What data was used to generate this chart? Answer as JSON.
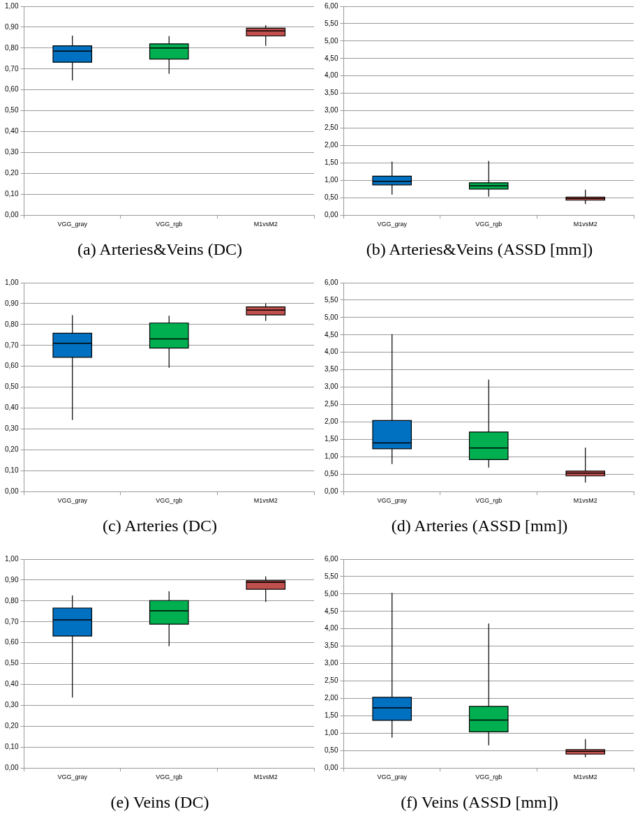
{
  "chart_data": [
    {
      "type": "box",
      "title": "(a) Arteries&Veins (DC)",
      "categories": [
        "VGG_gray",
        "VGG_rgb",
        "M1vsM2"
      ],
      "colors": [
        "#0070c0",
        "#00b050",
        "#c0504d"
      ],
      "grid": "y",
      "ylim": [
        0,
        1
      ],
      "yticks": [
        {
          "value": 0,
          "label": "0,00"
        },
        {
          "value": 0.1,
          "label": "0,10"
        },
        {
          "value": 0.2,
          "label": "0,20"
        },
        {
          "value": 0.3,
          "label": "0,30"
        },
        {
          "value": 0.4,
          "label": "0,40"
        },
        {
          "value": 0.5,
          "label": "0,50"
        },
        {
          "value": 0.6,
          "label": "0,60"
        },
        {
          "value": 0.7,
          "label": "0,70"
        },
        {
          "value": 0.8,
          "label": "0,80"
        },
        {
          "value": 0.9,
          "label": "0,90"
        },
        {
          "value": 1,
          "label": "1,00"
        }
      ],
      "boxes": [
        {
          "low": 0.645,
          "q1": 0.732,
          "median": 0.785,
          "q3": 0.811,
          "high": 0.86
        },
        {
          "low": 0.677,
          "q1": 0.747,
          "median": 0.8,
          "q3": 0.82,
          "high": 0.857
        },
        {
          "low": 0.811,
          "q1": 0.858,
          "median": 0.882,
          "q3": 0.895,
          "high": 0.91
        }
      ]
    },
    {
      "type": "box",
      "title": "(b) Arteries&Veins (ASSD [mm])",
      "categories": [
        "VGG_gray",
        "VGG_rgb",
        "M1vsM2"
      ],
      "colors": [
        "#0070c0",
        "#00b050",
        "#c0504d"
      ],
      "grid": "y",
      "ylim": [
        0,
        6
      ],
      "yticks": [
        {
          "value": 0,
          "label": "0,00"
        },
        {
          "value": 0.5,
          "label": "0,50"
        },
        {
          "value": 1,
          "label": "1,00"
        },
        {
          "value": 1.5,
          "label": "1,50"
        },
        {
          "value": 2,
          "label": "2,00"
        },
        {
          "value": 2.5,
          "label": "2,50"
        },
        {
          "value": 3,
          "label": "3,00"
        },
        {
          "value": 3.5,
          "label": "3,50"
        },
        {
          "value": 4,
          "label": "4,00"
        },
        {
          "value": 4.5,
          "label": "4,50"
        },
        {
          "value": 5,
          "label": "5,00"
        },
        {
          "value": 5.5,
          "label": "5,50"
        },
        {
          "value": 6,
          "label": "6,00"
        }
      ],
      "boxes": [
        {
          "low": 0.59,
          "q1": 0.87,
          "median": 0.97,
          "q3": 1.12,
          "high": 1.54
        },
        {
          "low": 0.53,
          "q1": 0.75,
          "median": 0.84,
          "q3": 0.93,
          "high": 1.56
        },
        {
          "low": 0.32,
          "q1": 0.43,
          "median": 0.48,
          "q3": 0.52,
          "high": 0.73
        }
      ]
    },
    {
      "type": "box",
      "title": "(c) Arteries (DC)",
      "categories": [
        "VGG_gray",
        "VGG_rgb",
        "M1vsM2"
      ],
      "colors": [
        "#0070c0",
        "#00b050",
        "#c0504d"
      ],
      "grid": "y",
      "ylim": [
        0,
        1
      ],
      "yticks": [
        {
          "value": 0,
          "label": "0,00"
        },
        {
          "value": 0.1,
          "label": "0,10"
        },
        {
          "value": 0.2,
          "label": "0,20"
        },
        {
          "value": 0.3,
          "label": "0,30"
        },
        {
          "value": 0.4,
          "label": "0,40"
        },
        {
          "value": 0.5,
          "label": "0,50"
        },
        {
          "value": 0.6,
          "label": "0,60"
        },
        {
          "value": 0.7,
          "label": "0,70"
        },
        {
          "value": 0.8,
          "label": "0,80"
        },
        {
          "value": 0.9,
          "label": "0,90"
        },
        {
          "value": 1,
          "label": "1,00"
        }
      ],
      "boxes": [
        {
          "low": 0.342,
          "q1": 0.643,
          "median": 0.71,
          "q3": 0.758,
          "high": 0.845
        },
        {
          "low": 0.593,
          "q1": 0.687,
          "median": 0.731,
          "q3": 0.807,
          "high": 0.842
        },
        {
          "low": 0.817,
          "q1": 0.846,
          "median": 0.869,
          "q3": 0.884,
          "high": 0.901
        }
      ]
    },
    {
      "type": "box",
      "title": "(d) Arteries (ASSD [mm])",
      "categories": [
        "VGG_gray",
        "VGG_rgb",
        "M1vsM2"
      ],
      "colors": [
        "#0070c0",
        "#00b050",
        "#c0504d"
      ],
      "grid": "y",
      "ylim": [
        0,
        6
      ],
      "yticks": [
        {
          "value": 0,
          "label": "0,00"
        },
        {
          "value": 0.5,
          "label": "0,50"
        },
        {
          "value": 1,
          "label": "1,00"
        },
        {
          "value": 1.5,
          "label": "1,50"
        },
        {
          "value": 2,
          "label": "2,00"
        },
        {
          "value": 2.5,
          "label": "2,50"
        },
        {
          "value": 3,
          "label": "3,00"
        },
        {
          "value": 3.5,
          "label": "3,50"
        },
        {
          "value": 4,
          "label": "4,00"
        },
        {
          "value": 4.5,
          "label": "4,50"
        },
        {
          "value": 5,
          "label": "5,00"
        },
        {
          "value": 5.5,
          "label": "5,50"
        },
        {
          "value": 6,
          "label": "6,00"
        }
      ],
      "boxes": [
        {
          "low": 0.79,
          "q1": 1.23,
          "median": 1.4,
          "q3": 2.04,
          "high": 4.52
        },
        {
          "low": 0.69,
          "q1": 0.92,
          "median": 1.25,
          "q3": 1.71,
          "high": 3.22
        },
        {
          "low": 0.26,
          "q1": 0.45,
          "median": 0.53,
          "q3": 0.59,
          "high": 1.26
        }
      ]
    },
    {
      "type": "box",
      "title": "(e) Veins (DC)",
      "categories": [
        "VGG_gray",
        "VGG_rgb",
        "M1vsM2"
      ],
      "colors": [
        "#0070c0",
        "#00b050",
        "#c0504d"
      ],
      "grid": "y",
      "ylim": [
        0,
        1
      ],
      "yticks": [
        {
          "value": 0,
          "label": "0,00"
        },
        {
          "value": 0.1,
          "label": "0,10"
        },
        {
          "value": 0.2,
          "label": "0,20"
        },
        {
          "value": 0.3,
          "label": "0,30"
        },
        {
          "value": 0.4,
          "label": "0,40"
        },
        {
          "value": 0.5,
          "label": "0,50"
        },
        {
          "value": 0.6,
          "label": "0,60"
        },
        {
          "value": 0.7,
          "label": "0,70"
        },
        {
          "value": 0.8,
          "label": "0,80"
        },
        {
          "value": 0.9,
          "label": "0,90"
        },
        {
          "value": 1,
          "label": "1,00"
        }
      ],
      "boxes": [
        {
          "low": 0.337,
          "q1": 0.632,
          "median": 0.709,
          "q3": 0.766,
          "high": 0.826
        },
        {
          "low": 0.583,
          "q1": 0.689,
          "median": 0.753,
          "q3": 0.802,
          "high": 0.846
        },
        {
          "low": 0.795,
          "q1": 0.856,
          "median": 0.889,
          "q3": 0.897,
          "high": 0.917
        }
      ]
    },
    {
      "type": "box",
      "title": "(f) Veins (ASSD [mm])",
      "categories": [
        "VGG_gray",
        "VGG_rgb",
        "M1vsM2"
      ],
      "colors": [
        "#0070c0",
        "#00b050",
        "#c0504d"
      ],
      "grid": "y",
      "ylim": [
        0,
        6
      ],
      "yticks": [
        {
          "value": 0,
          "label": "0,00"
        },
        {
          "value": 0.5,
          "label": "0,50"
        },
        {
          "value": 1,
          "label": "1,00"
        },
        {
          "value": 1.5,
          "label": "1,50"
        },
        {
          "value": 2,
          "label": "2,00"
        },
        {
          "value": 2.5,
          "label": "2,50"
        },
        {
          "value": 3,
          "label": "3,00"
        },
        {
          "value": 3.5,
          "label": "3,50"
        },
        {
          "value": 4,
          "label": "4,00"
        },
        {
          "value": 4.5,
          "label": "4,50"
        },
        {
          "value": 5,
          "label": "5,00"
        },
        {
          "value": 5.5,
          "label": "5,50"
        },
        {
          "value": 6,
          "label": "6,00"
        }
      ],
      "boxes": [
        {
          "low": 0.87,
          "q1": 1.37,
          "median": 1.73,
          "q3": 2.03,
          "high": 5.03
        },
        {
          "low": 0.65,
          "q1": 1.04,
          "median": 1.38,
          "q3": 1.77,
          "high": 4.15
        },
        {
          "low": 0.31,
          "q1": 0.4,
          "median": 0.48,
          "q3": 0.53,
          "high": 0.83
        }
      ]
    }
  ]
}
